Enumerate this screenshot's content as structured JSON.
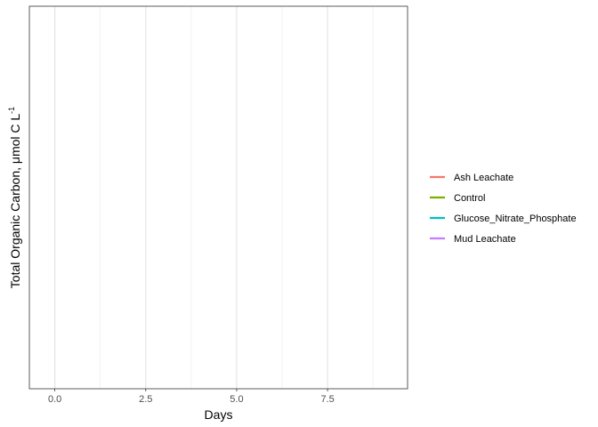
{
  "chart_data": {
    "type": "line",
    "title": "",
    "xlabel": "Days",
    "ylabel": {
      "text": "Total Organic Carbon, μmol C L",
      "superscript": "-1"
    },
    "x_ticks": [
      {
        "value": 0,
        "label": "0.0"
      },
      {
        "value": 2.5,
        "label": "2.5"
      },
      {
        "value": 5,
        "label": "5.0"
      },
      {
        "value": 7.5,
        "label": "7.5"
      }
    ],
    "x_minor_gridlines": [
      1.25,
      3.75,
      6.25,
      8.75
    ],
    "xlim": [
      -0.7,
      9.7
    ],
    "y_ticks": [],
    "grid": true,
    "legend_position": "right",
    "series": [
      {
        "name": "Ash Leachate",
        "color": "#F8766D",
        "points": []
      },
      {
        "name": "Control",
        "color": "#7CAE00",
        "points": []
      },
      {
        "name": "Glucose_Nitrate_Phosphate",
        "color": "#00BFC4",
        "points": []
      },
      {
        "name": "Mud Leachate",
        "color": "#C77CFF",
        "points": []
      }
    ]
  }
}
